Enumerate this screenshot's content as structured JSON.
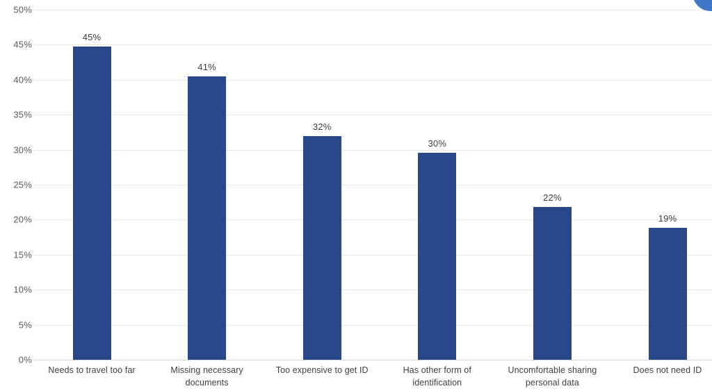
{
  "chart_data": {
    "type": "bar",
    "title": "",
    "xlabel": "",
    "ylabel": "",
    "categories": [
      "Needs to travel too far",
      "Missing necessary documents",
      "Too expensive to get ID",
      "Has other form of identification",
      "Uncomfortable sharing personal data",
      "Does not need ID"
    ],
    "values": [
      45,
      41,
      32,
      30,
      22,
      19
    ],
    "value_labels": [
      "45%",
      "41%",
      "32%",
      "30%",
      "22%",
      "19%"
    ],
    "bar_display_values": [
      44.7,
      40.5,
      31.9,
      29.6,
      21.8,
      18.8
    ],
    "y_ticks": [
      0,
      5,
      10,
      15,
      20,
      25,
      30,
      35,
      40,
      45,
      50
    ],
    "y_tick_labels": [
      "0%",
      "5%",
      "10%",
      "15%",
      "20%",
      "25%",
      "30%",
      "35%",
      "40%",
      "45%",
      "50%"
    ],
    "ylim": [
      0,
      50
    ],
    "grid": true,
    "legend": false,
    "bar_color": "#27498c",
    "gridline_color": "#e7e7e7",
    "label_color": "#3d3d3d",
    "tick_color": "#595959"
  },
  "overlay": {
    "floating_button_color": "#3e76c5"
  }
}
